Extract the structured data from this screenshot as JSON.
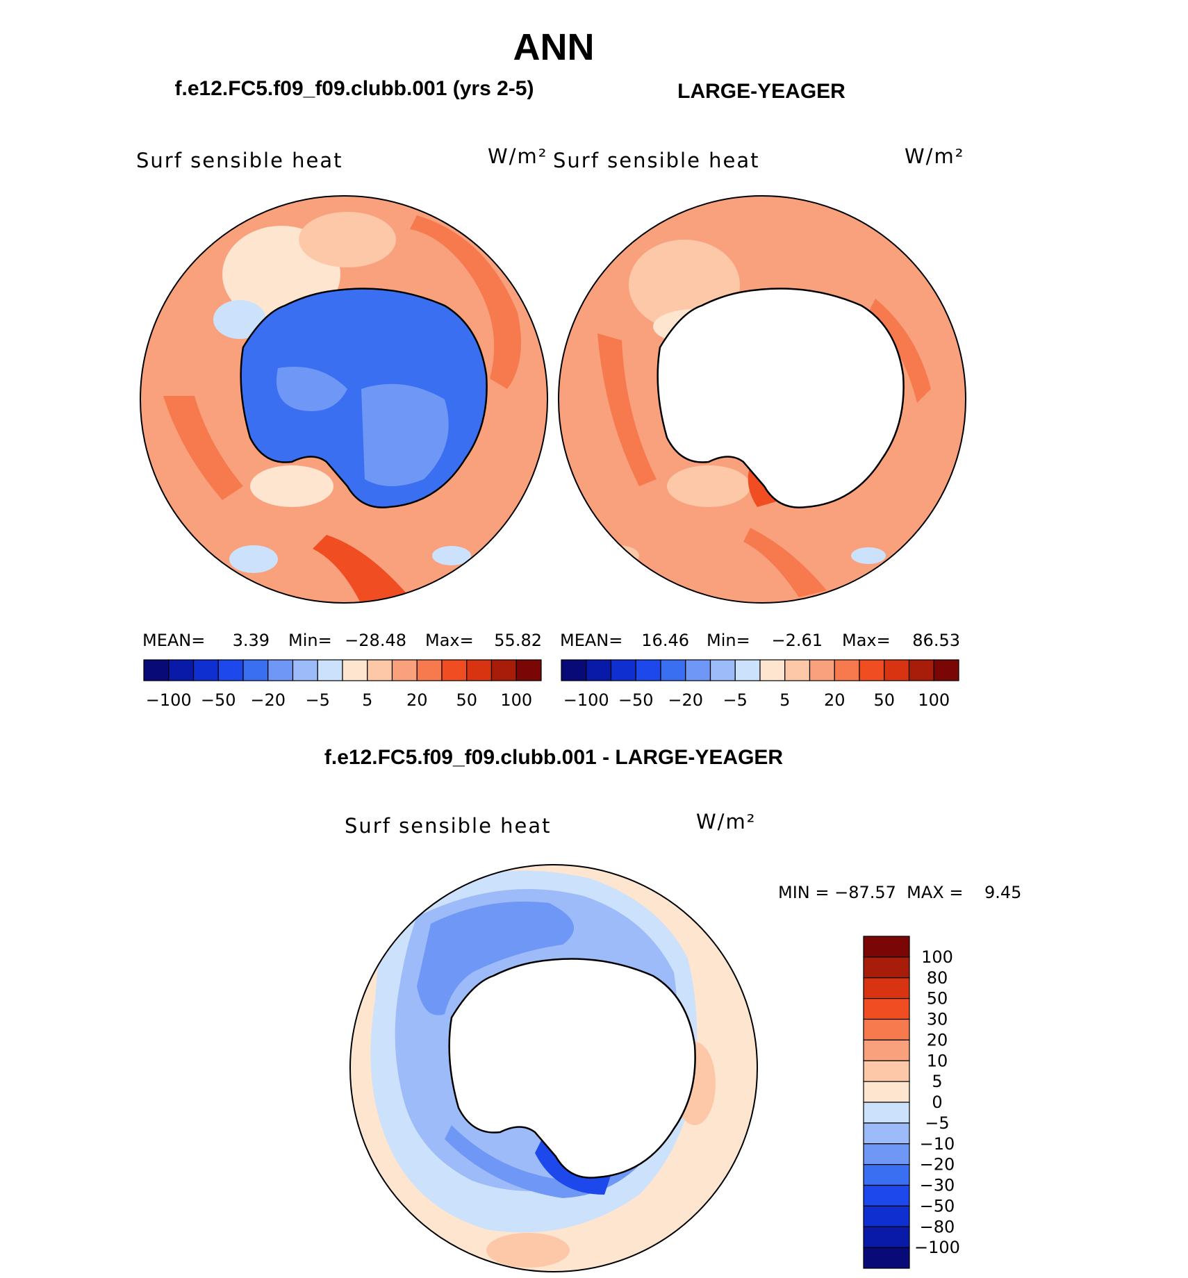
{
  "header": {
    "season": "ANN",
    "case_title": "f.e12.FC5.f09_f09.clubb.001 (yrs 2-5)",
    "obs_title": "LARGE-YEAGER",
    "diff_title": "f.e12.FC5.f09_f09.clubb.001 - LARGE-YEAGER"
  },
  "colors": {
    "ocean_blank": "#ffffff",
    "coast": "#000000"
  },
  "chart_data": [
    {
      "type": "heatmap",
      "projection": "south-polar-stereographic",
      "variable_label": "Surf sensible heat",
      "units": "W/m²",
      "stats": {
        "mean_label": "MEAN=",
        "mean": "3.39",
        "min_label": "Min=",
        "min": "−28.48",
        "max_label": "Max=",
        "max": "55.82"
      },
      "colorbar": {
        "orientation": "horizontal",
        "levels": [
          "−100",
          "−50",
          "−20",
          "−5",
          "5",
          "20",
          "50",
          "100"
        ],
        "colors": [
          "#080a78",
          "#0a1aa8",
          "#0f2fd0",
          "#1c48ec",
          "#3b6ff2",
          "#6f97f5",
          "#9dbbf8",
          "#cce1fb",
          "#fde5d0",
          "#fcc8a8",
          "#f9a17d",
          "#f67a4e",
          "#f04e22",
          "#d83412",
          "#a81d0a",
          "#7a0605"
        ]
      },
      "regions": {
        "land_value_class": "negative",
        "ocean_value_class": "positive"
      }
    },
    {
      "type": "heatmap",
      "projection": "south-polar-stereographic",
      "variable_label": "Surf sensible heat",
      "units": "W/m²",
      "stats": {
        "mean_label": "MEAN=",
        "mean": "16.46",
        "min_label": "Min=",
        "min": "−2.61",
        "max_label": "Max=",
        "max": "86.53"
      },
      "colorbar": {
        "orientation": "horizontal",
        "levels": [
          "−100",
          "−50",
          "−20",
          "−5",
          "5",
          "20",
          "50",
          "100"
        ],
        "colors": [
          "#080a78",
          "#0a1aa8",
          "#0f2fd0",
          "#1c48ec",
          "#3b6ff2",
          "#6f97f5",
          "#9dbbf8",
          "#cce1fb",
          "#fde5d0",
          "#fcc8a8",
          "#f9a17d",
          "#f67a4e",
          "#f04e22",
          "#d83412",
          "#a81d0a",
          "#7a0605"
        ]
      },
      "regions": {
        "land_value_class": "missing",
        "ocean_value_class": "positive"
      }
    },
    {
      "type": "heatmap",
      "projection": "south-polar-stereographic",
      "variable_label": "Surf sensible heat",
      "units": "W/m²",
      "stats": {
        "text": "MIN = −87.57  MAX =    9.45"
      },
      "colorbar": {
        "orientation": "vertical",
        "levels": [
          "100",
          "80",
          "50",
          "30",
          "20",
          "10",
          "5",
          "0",
          "−5",
          "−10",
          "−20",
          "−30",
          "−50",
          "−80",
          "−100"
        ],
        "colors": [
          "#7a0605",
          "#a81d0a",
          "#d83412",
          "#f04e22",
          "#f67a4e",
          "#f9a17d",
          "#fcc8a8",
          "#fde5d0",
          "#cce1fb",
          "#9dbbf8",
          "#6f97f5",
          "#3b6ff2",
          "#1c48ec",
          "#0f2fd0",
          "#0a1aa8",
          "#080a78"
        ]
      },
      "regions": {
        "land_value_class": "missing",
        "ocean_value_class": "negative"
      }
    }
  ]
}
